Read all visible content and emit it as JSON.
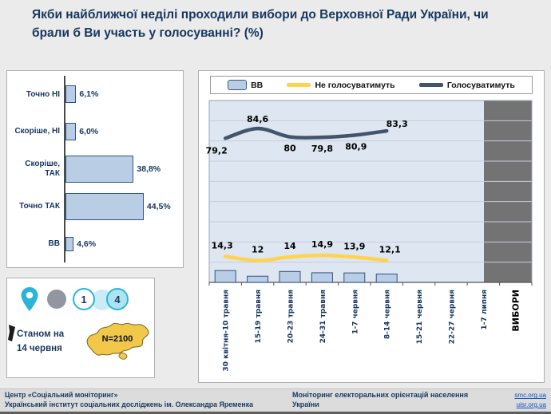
{
  "title": "Якби найближчої неділі проходили вибори до Верховної Ради України, чи брали б Ви участь у голосуванні? (%)",
  "colors": {
    "navy": "#17375e",
    "bar_fill": "#b9cde5",
    "bar_border": "#31537f",
    "plot_bg": "#dde6f1",
    "elections_band": "#737373",
    "yellow_line": "#ffd34d",
    "dark_line": "#44546a",
    "cyan_accent": "#2ab5d8",
    "map_yellow": "#f2c84b"
  },
  "legend": {
    "items": [
      {
        "label": "ВВ"
      },
      {
        "label": "Не голосуватимуть"
      },
      {
        "label": "Голосуватимуть"
      }
    ]
  },
  "chart_data": [
    {
      "type": "bar",
      "orientation": "horizontal",
      "title": "",
      "categories": [
        "Точно НІ",
        "Скоріше, НІ",
        "Скоріше, ТАК",
        "Точно ТАК",
        "ВВ"
      ],
      "values": [
        6.1,
        6.0,
        38.8,
        44.5,
        4.6
      ],
      "value_labels": [
        "6,1%",
        "6,0%",
        "38,8%",
        "44,5%",
        "4,6%"
      ],
      "xlim": [
        0,
        50
      ],
      "grid": false
    },
    {
      "type": "line",
      "title": "",
      "categories": [
        "30 квітня-10 травня",
        "15-19 травня",
        "20-23 травня",
        "24-31 травня",
        "1-7 червня",
        "8-14 червня",
        "15-21 червня",
        "22-27 червня",
        "1-7 липня",
        "ВИБОРИ"
      ],
      "series": [
        {
          "key": "will_vote",
          "name": "Голосуватимуть",
          "render": "line",
          "color": "#44546a",
          "values": [
            79.2,
            84.6,
            80,
            79.8,
            80.9,
            83.3
          ],
          "labels": [
            "79,2",
            "84,6",
            "80",
            "79,8",
            "80,9",
            "83,3"
          ]
        },
        {
          "key": "will_not_vote",
          "name": "Не голосуватимуть",
          "render": "line",
          "color": "#ffd34d",
          "values": [
            14.3,
            12,
            14,
            14.9,
            13.9,
            12.1
          ],
          "labels": [
            "14,3",
            "12",
            "14",
            "14,9",
            "13,9",
            "12,1"
          ]
        },
        {
          "key": "vv",
          "name": "ВВ",
          "render": "bar",
          "color": "#b9cde5",
          "values": [
            6.5,
            3.4,
            6.0,
            5.3,
            5.2,
            4.6
          ],
          "labels": []
        }
      ],
      "ylim": [
        0,
        100
      ],
      "grid": true,
      "legend_position": "top"
    }
  ],
  "infobox": {
    "asof_line1": "Станом на",
    "asof_line2": "14 червня",
    "badge_1": "1",
    "badge_4": "4",
    "sample_size": "N=2100"
  },
  "footer": {
    "org_line1": "Центр «Соціальний моніторинг»",
    "org_line2": "Український інститут соціальних досліджень  ім. Олександра Яременка",
    "center_text": "Моніторинг електоральних орієнтацій населення України",
    "link_1": "smc.org.ua",
    "link_2": "uisr.org.ua"
  }
}
